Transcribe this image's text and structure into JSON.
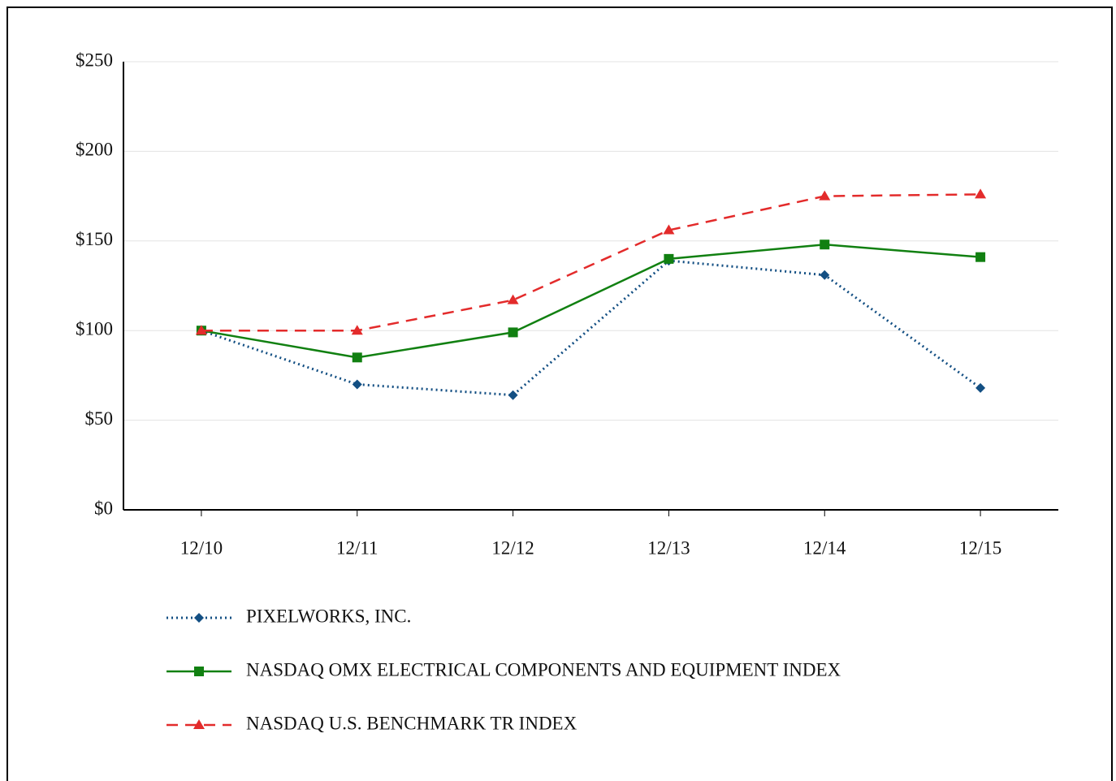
{
  "chart_data": {
    "type": "line",
    "categories": [
      "12/10",
      "12/11",
      "12/12",
      "12/13",
      "12/14",
      "12/15"
    ],
    "series": [
      {
        "name": "PIXELWORKS, INC.",
        "color": "#134f83",
        "dash": "dotted",
        "marker": "diamond",
        "values": [
          100,
          70,
          64,
          139,
          131,
          68
        ]
      },
      {
        "name": "NASDAQ OMX ELECTRICAL COMPONENTS AND EQUIPMENT INDEX",
        "color": "#118011",
        "dash": "solid",
        "marker": "square",
        "values": [
          100,
          85,
          99,
          140,
          148,
          141
        ]
      },
      {
        "name": "NASDAQ U.S. BENCHMARK TR INDEX",
        "color": "#e32b2b",
        "dash": "dashed",
        "marker": "triangle",
        "values": [
          100,
          100,
          117,
          156,
          175,
          176
        ]
      }
    ],
    "ylim": [
      0,
      250
    ],
    "yticks": [
      {
        "value": 0,
        "label": "$0"
      },
      {
        "value": 50,
        "label": "$50"
      },
      {
        "value": 100,
        "label": "$100"
      },
      {
        "value": 150,
        "label": "$150"
      },
      {
        "value": 200,
        "label": "$200"
      },
      {
        "value": 250,
        "label": "$250"
      }
    ],
    "grid": true,
    "legend": "bottom-left"
  }
}
